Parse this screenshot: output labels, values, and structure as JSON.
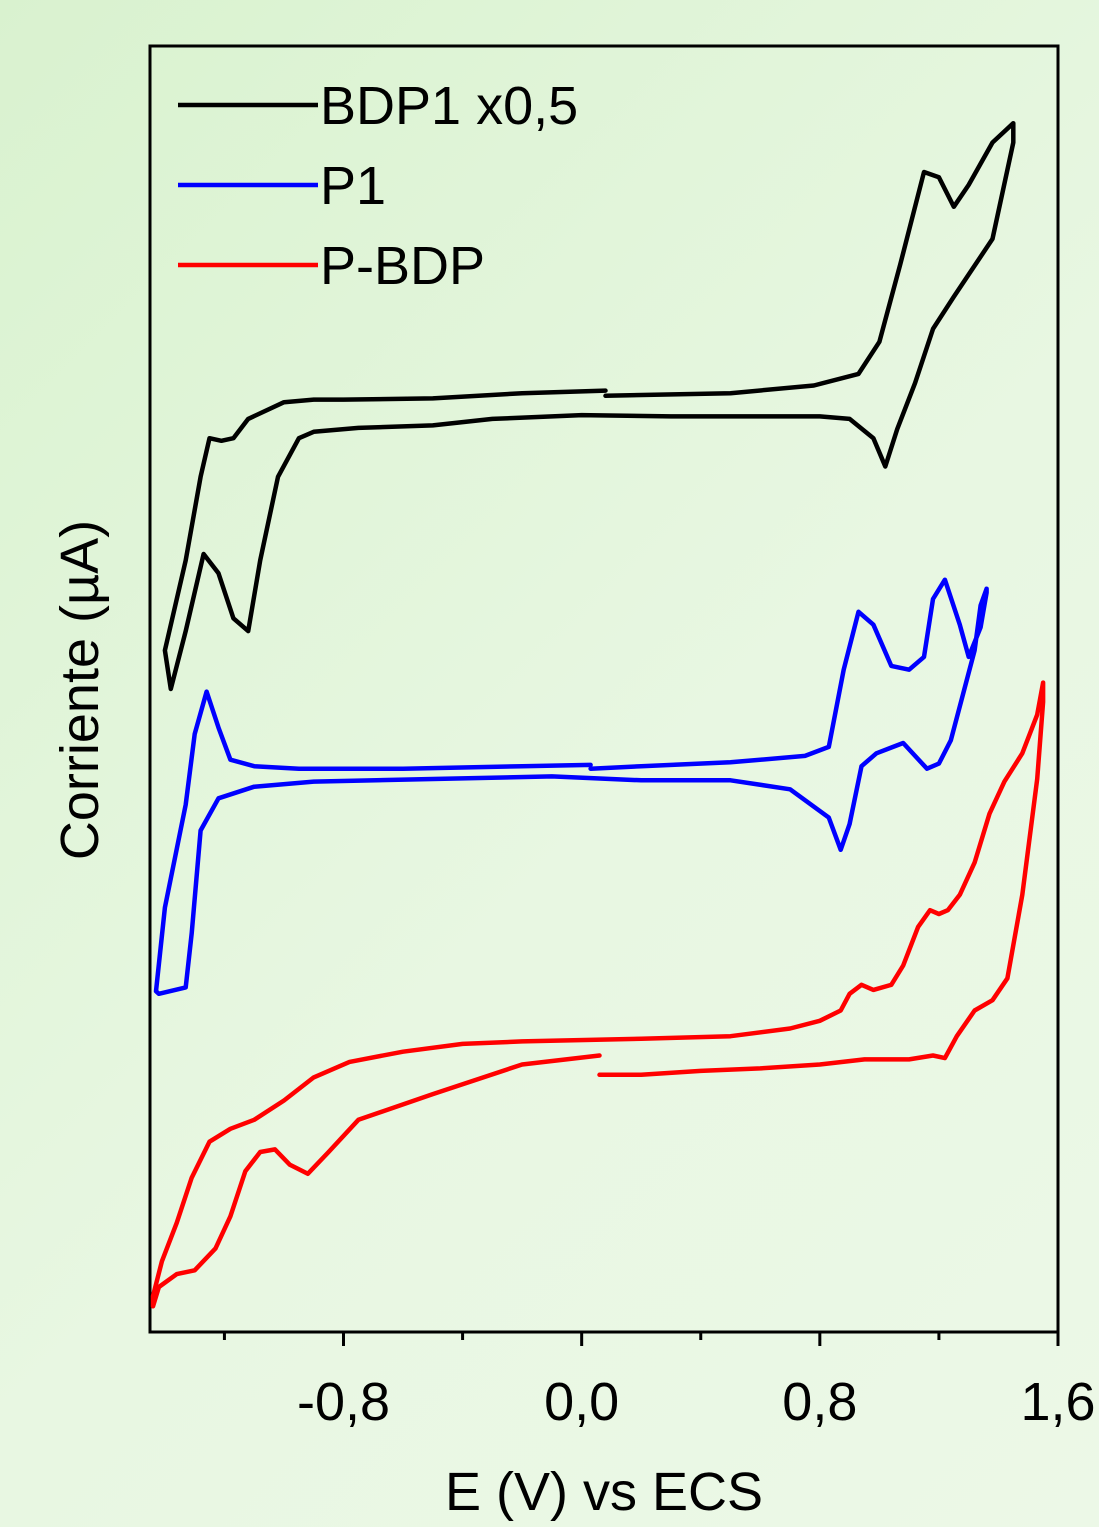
{
  "chart_data": {
    "type": "line",
    "xlabel": "E (V) vs ECS",
    "ylabel": "Corriente (µA)",
    "xlim": [
      -1.45,
      1.6
    ],
    "ylim": [
      0,
      100
    ],
    "y_ticks_shown": false,
    "x_ticks": [
      {
        "value": -0.8,
        "label": "-0,8"
      },
      {
        "value": 0.0,
        "label": "0,0"
      },
      {
        "value": 0.8,
        "label": "0,8"
      },
      {
        "value": 1.6,
        "label": "1,6"
      }
    ],
    "x_minor_ticks": [
      -1.2,
      -0.4,
      0.4,
      1.2
    ],
    "legend_position": "top-left",
    "series": [
      {
        "name": "BDP1 x0,5",
        "color": "#000000",
        "x": [
          0.08,
          0.5,
          0.78,
          0.93,
          1.0,
          1.07,
          1.15,
          1.2,
          1.25,
          1.3,
          1.38,
          1.45,
          1.45,
          1.38,
          1.25,
          1.18,
          1.12,
          1.06,
          1.02,
          0.98,
          0.9,
          0.8,
          0.6,
          0.3,
          0.0,
          -0.3,
          -0.5,
          -0.75,
          -0.9,
          -0.95,
          -1.02,
          -1.08,
          -1.12,
          -1.17,
          -1.22,
          -1.27,
          -1.33,
          -1.38,
          -1.4,
          -1.33,
          -1.28,
          -1.25,
          -1.21,
          -1.17,
          -1.12,
          -1.0,
          -0.9,
          -0.8,
          -0.5,
          -0.2,
          0.08
        ],
        "y": [
          72.8,
          73.0,
          73.6,
          74.5,
          77.0,
          83.0,
          90.2,
          89.8,
          87.5,
          89.2,
          92.5,
          94.0,
          92.5,
          85.0,
          80.5,
          78.0,
          73.8,
          70.2,
          67.3,
          69.5,
          71.0,
          71.2,
          71.2,
          71.2,
          71.3,
          71.0,
          70.5,
          70.3,
          70.0,
          69.5,
          66.5,
          60.0,
          54.5,
          55.5,
          59.0,
          60.5,
          54.5,
          50.0,
          53.0,
          60.0,
          66.5,
          69.5,
          69.3,
          69.5,
          71.0,
          72.3,
          72.5,
          72.5,
          72.6,
          73.0,
          73.2
        ]
      },
      {
        "name": "P1",
        "color": "#0000ff",
        "x": [
          0.03,
          -0.2,
          -0.6,
          -0.95,
          -1.1,
          -1.18,
          -1.22,
          -1.26,
          -1.3,
          -1.33,
          -1.4,
          -1.43,
          -1.42,
          -1.33,
          -1.31,
          -1.28,
          -1.22,
          -1.1,
          -0.9,
          -0.5,
          -0.1,
          0.2,
          0.5,
          0.7,
          0.83,
          0.87,
          0.9,
          0.94,
          0.99,
          1.08,
          1.12,
          1.16,
          1.2,
          1.24,
          1.28,
          1.32,
          1.34,
          1.36,
          1.36,
          1.34,
          1.3,
          1.27,
          1.22,
          1.18,
          1.15,
          1.1,
          1.04,
          0.98,
          0.93,
          0.88,
          0.83,
          0.75,
          0.5,
          0.2,
          0.03
        ],
        "y": [
          44.1,
          44.0,
          43.8,
          43.8,
          44.0,
          44.5,
          47.0,
          49.8,
          46.5,
          41.0,
          33.0,
          26.5,
          26.3,
          26.8,
          31.0,
          39.0,
          41.5,
          42.4,
          42.8,
          43.0,
          43.2,
          42.9,
          42.9,
          42.2,
          40.0,
          37.5,
          39.5,
          44.0,
          45.0,
          45.8,
          44.8,
          43.8,
          44.2,
          46.0,
          49.5,
          53.0,
          56.5,
          57.8,
          57.5,
          54.8,
          52.5,
          55.0,
          58.5,
          57.0,
          52.5,
          51.5,
          51.8,
          55.0,
          56.0,
          51.5,
          45.5,
          44.8,
          44.3,
          44.0,
          43.8
        ]
      },
      {
        "name": "P-BDP",
        "color": "#ff0000",
        "x": [
          0.06,
          -0.2,
          -0.5,
          -0.75,
          -0.85,
          -0.92,
          -0.98,
          -1.03,
          -1.08,
          -1.13,
          -1.18,
          -1.23,
          -1.3,
          -1.36,
          -1.42,
          -1.44,
          -1.44,
          -1.41,
          -1.36,
          -1.31,
          -1.25,
          -1.18,
          -1.1,
          -1.0,
          -0.9,
          -0.78,
          -0.6,
          -0.4,
          -0.2,
          0.2,
          0.5,
          0.7,
          0.8,
          0.87,
          0.9,
          0.94,
          0.98,
          1.04,
          1.08,
          1.13,
          1.17,
          1.2,
          1.23,
          1.27,
          1.32,
          1.37,
          1.42,
          1.48,
          1.53,
          1.55,
          1.55,
          1.53,
          1.48,
          1.43,
          1.38,
          1.32,
          1.26,
          1.22,
          1.18,
          1.1,
          0.95,
          0.8,
          0.6,
          0.4,
          0.2,
          0.06
        ],
        "y": [
          21.5,
          20.8,
          18.5,
          16.5,
          14.0,
          12.3,
          13.0,
          14.2,
          14.0,
          12.5,
          9.0,
          6.5,
          4.8,
          4.5,
          3.5,
          2.0,
          2.8,
          5.5,
          8.5,
          12.0,
          14.8,
          15.8,
          16.5,
          18.0,
          19.8,
          21.0,
          21.8,
          22.4,
          22.6,
          22.8,
          23.0,
          23.6,
          24.2,
          25.0,
          26.3,
          27.0,
          26.6,
          27.0,
          28.5,
          31.5,
          32.8,
          32.5,
          32.8,
          34.0,
          36.5,
          40.3,
          42.8,
          45.0,
          48.0,
          50.5,
          49.0,
          43.0,
          34.0,
          27.5,
          25.8,
          25.0,
          23.0,
          21.3,
          21.5,
          21.2,
          21.2,
          20.8,
          20.5,
          20.3,
          20.0,
          20.0
        ]
      }
    ]
  }
}
